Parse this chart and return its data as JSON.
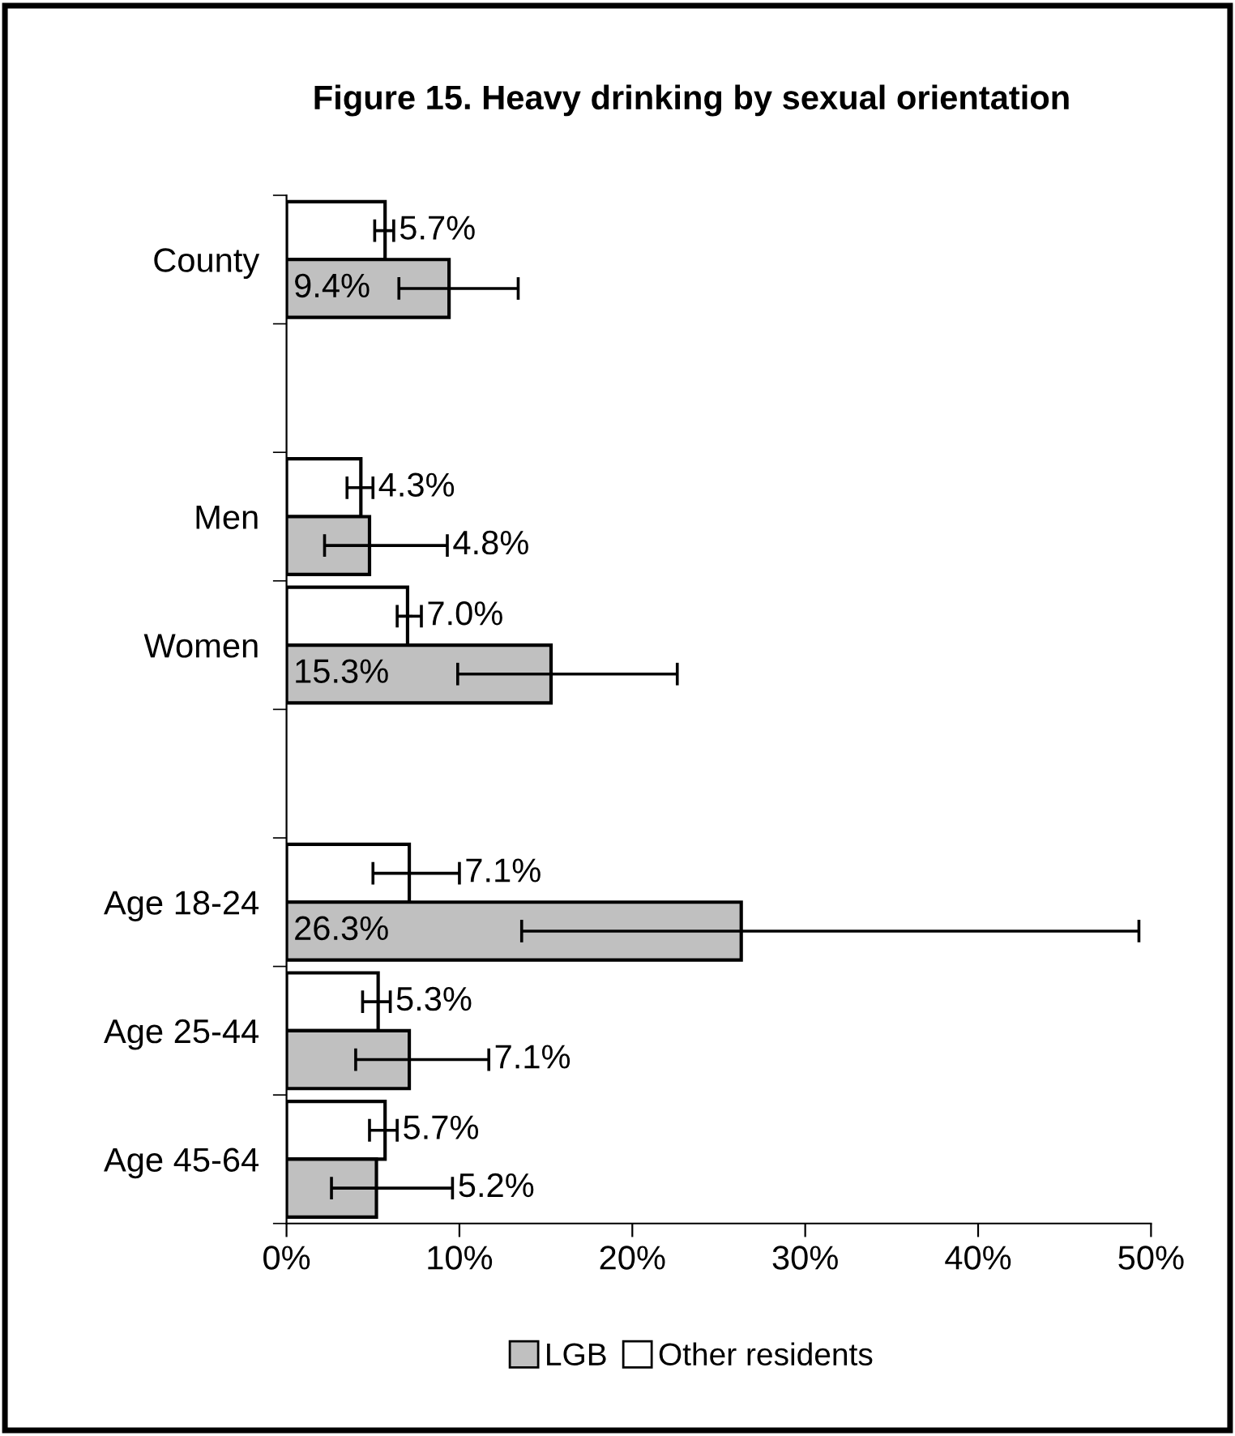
{
  "chart_data": {
    "type": "bar",
    "orientation": "horizontal",
    "title": "Figure 15. Heavy drinking by sexual orientation",
    "categories": [
      "County",
      null,
      "Men",
      "Women",
      null,
      "Age 18-24",
      "Age 25-44",
      "Age 45-64"
    ],
    "series": [
      {
        "name": "Other residents",
        "color": "#ffffff",
        "values": [
          5.7,
          null,
          4.3,
          7.0,
          null,
          7.1,
          5.3,
          5.7
        ],
        "errors": [
          [
            5.1,
            6.2
          ],
          null,
          [
            3.5,
            5.0
          ],
          [
            6.4,
            7.8
          ],
          null,
          [
            5.0,
            10.0
          ],
          [
            4.4,
            6.0
          ],
          [
            4.8,
            6.4
          ]
        ],
        "value_labels": [
          "5.7%",
          null,
          "4.3%",
          "7.0%",
          null,
          "7.1%",
          "5.3%",
          "5.7%"
        ]
      },
      {
        "name": "LGB",
        "color": "#c0c0c0",
        "values": [
          9.4,
          null,
          4.8,
          15.3,
          null,
          26.3,
          7.1,
          5.2
        ],
        "errors": [
          [
            6.5,
            13.4
          ],
          null,
          [
            2.2,
            9.3
          ],
          [
            9.9,
            22.6
          ],
          null,
          [
            13.6,
            49.3
          ],
          [
            4.0,
            11.7
          ],
          [
            2.6,
            9.6
          ]
        ],
        "value_labels": [
          "9.4%",
          null,
          "4.8%",
          "15.3%",
          null,
          "26.3%",
          "7.1%",
          "5.2%"
        ]
      }
    ],
    "xlim": [
      0,
      50
    ],
    "xticks": [
      {
        "value": 0,
        "label": "0%"
      },
      {
        "value": 10,
        "label": "10%"
      },
      {
        "value": 20,
        "label": "20%"
      },
      {
        "value": 30,
        "label": "30%"
      },
      {
        "value": 40,
        "label": "40%"
      },
      {
        "value": 50,
        "label": "50%"
      }
    ],
    "grid": false,
    "legend": "bottom"
  }
}
